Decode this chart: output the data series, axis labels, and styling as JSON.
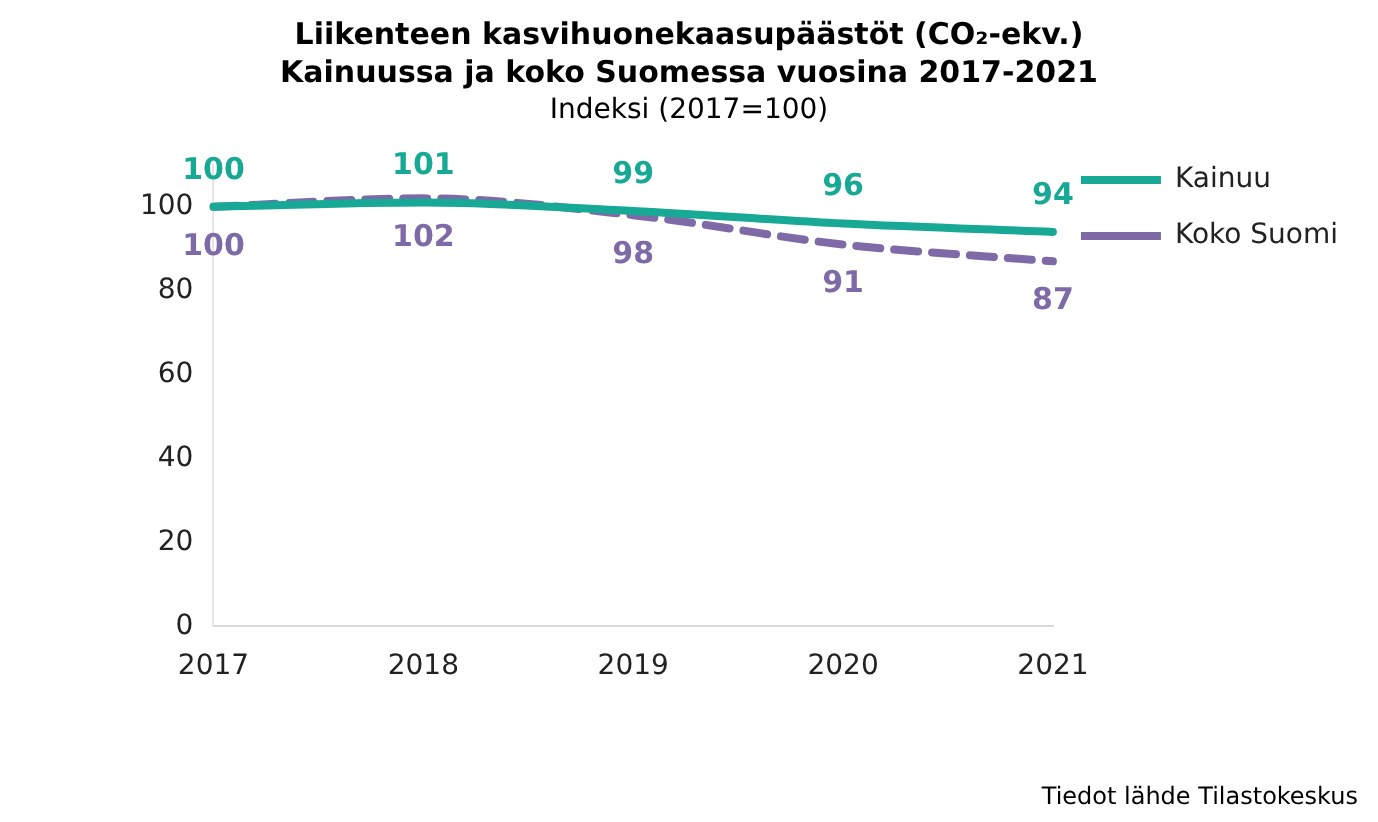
{
  "chart_data": {
    "type": "line",
    "title": "Liikenteen kasvihuonekaasupäästöt (CO₂-ekv.)\nKainuussa ja koko Suomessa vuosina 2017-2021",
    "subtitle": "Indeksi (2017=100)",
    "categories": [
      "2017",
      "2018",
      "2019",
      "2020",
      "2021"
    ],
    "series": [
      {
        "name": "Kainuu",
        "color": "#17a996",
        "values": [
          100,
          101,
          99,
          96,
          94
        ],
        "line_style": "solid"
      },
      {
        "name": "Koko Suomi",
        "color": "#7e6aa6",
        "values": [
          100,
          102,
          98,
          91,
          87
        ],
        "line_style": "dashed"
      }
    ],
    "ylim": [
      0,
      110
    ],
    "yticks": [
      0,
      20,
      40,
      60,
      80,
      100
    ],
    "grid": false,
    "legend": "right",
    "marker": "none",
    "data_labels": true,
    "annotations": [
      "Tiedot lähde Tilastokeskus"
    ]
  }
}
